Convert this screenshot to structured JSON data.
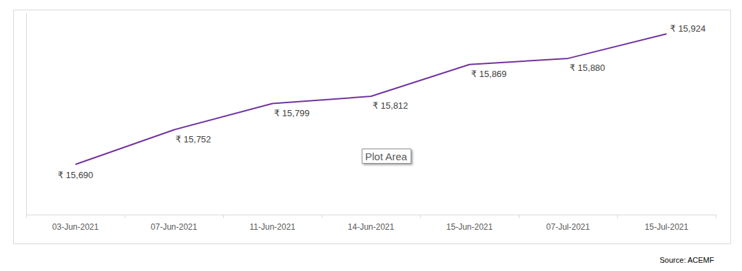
{
  "chart_data": {
    "type": "line",
    "categories": [
      "03-Jun-2021",
      "07-Jun-2021",
      "11-Jun-2021",
      "14-Jun-2021",
      "15-Jun-2021",
      "07-Jul-2021",
      "15-Jul-2021"
    ],
    "values": [
      15690,
      15752,
      15799,
      15812,
      15869,
      15880,
      15924
    ],
    "value_labels": [
      "₹ 15,690",
      "₹ 15,752",
      "₹ 15,799",
      "₹ 15,812",
      "₹ 15,869",
      "₹ 15,880",
      "₹ 15,924"
    ],
    "color": "#7030a0",
    "ylim": [
      15600,
      15960
    ],
    "yticks": [],
    "grid": false,
    "data_labels": true,
    "tick_labels": "x",
    "marker": "none",
    "line_style": "solid",
    "annotations": [
      "Plot Area",
      "Source: ACEMF"
    ]
  }
}
